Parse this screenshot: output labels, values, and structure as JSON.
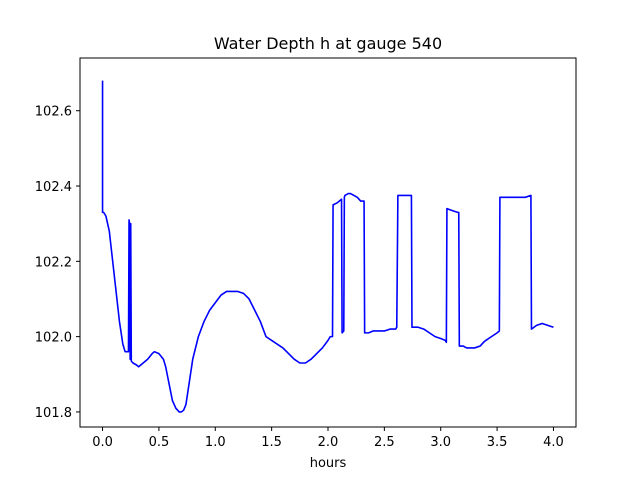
{
  "chart_data": {
    "type": "line",
    "title": "Water Depth h at gauge 540",
    "xlabel": "hours",
    "ylabel": "",
    "xlim": [
      -0.2,
      4.2
    ],
    "ylim": [
      101.76,
      102.74
    ],
    "xticks": [
      0.0,
      0.5,
      1.0,
      1.5,
      2.0,
      2.5,
      3.0,
      3.5,
      4.0
    ],
    "xtick_labels": [
      "0.0",
      "0.5",
      "1.0",
      "1.5",
      "2.0",
      "2.5",
      "3.0",
      "3.5",
      "4.0"
    ],
    "yticks": [
      101.8,
      102.0,
      102.2,
      102.4,
      102.6
    ],
    "ytick_labels": [
      "101.8",
      "102.0",
      "102.2",
      "102.4",
      "102.6"
    ],
    "grid": false,
    "series": [
      {
        "color": "#0000ff",
        "x": [
          0.0,
          0.0,
          0.01,
          0.03,
          0.06,
          0.09,
          0.12,
          0.15,
          0.18,
          0.2,
          0.23,
          0.235,
          0.24,
          0.245,
          0.25,
          0.255,
          0.27,
          0.3,
          0.32,
          0.36,
          0.4,
          0.44,
          0.46,
          0.5,
          0.54,
          0.56,
          0.6,
          0.62,
          0.65,
          0.68,
          0.7,
          0.72,
          0.74,
          0.76,
          0.8,
          0.85,
          0.9,
          0.95,
          1.0,
          1.05,
          1.1,
          1.15,
          1.2,
          1.25,
          1.3,
          1.35,
          1.4,
          1.45,
          1.5,
          1.55,
          1.6,
          1.65,
          1.7,
          1.75,
          1.8,
          1.85,
          1.9,
          1.95,
          2.0,
          2.02,
          2.04,
          2.045,
          2.08,
          2.1,
          2.12,
          2.125,
          2.14,
          2.145,
          2.15,
          2.18,
          2.2,
          2.23,
          2.26,
          2.29,
          2.32,
          2.325,
          2.33,
          2.36,
          2.4,
          2.45,
          2.5,
          2.55,
          2.6,
          2.61,
          2.62,
          2.64,
          2.66,
          2.7,
          2.72,
          2.74,
          2.745,
          2.76,
          2.8,
          2.85,
          2.9,
          2.95,
          3.0,
          3.04,
          3.05,
          3.055,
          3.1,
          3.15,
          3.16,
          3.165,
          3.2,
          3.23,
          3.26,
          3.3,
          3.35,
          3.38,
          3.4,
          3.45,
          3.5,
          3.52,
          3.525,
          3.55,
          3.6,
          3.65,
          3.7,
          3.75,
          3.8,
          3.805,
          3.85,
          3.9,
          3.95,
          4.0
        ],
        "y": [
          102.68,
          102.33,
          102.33,
          102.32,
          102.28,
          102.2,
          102.12,
          102.04,
          101.98,
          101.96,
          101.96,
          102.31,
          102.3,
          101.94,
          102.3,
          101.935,
          101.93,
          101.925,
          101.92,
          101.93,
          101.94,
          101.955,
          101.96,
          101.955,
          101.94,
          101.92,
          101.86,
          101.83,
          101.81,
          101.8,
          101.8,
          101.805,
          101.82,
          101.86,
          101.94,
          102.0,
          102.04,
          102.07,
          102.09,
          102.11,
          102.12,
          102.12,
          102.12,
          102.115,
          102.1,
          102.07,
          102.04,
          102.0,
          101.99,
          101.98,
          101.97,
          101.955,
          101.94,
          101.93,
          101.93,
          101.94,
          101.955,
          101.97,
          101.99,
          102.0,
          102.0,
          102.35,
          102.355,
          102.36,
          102.365,
          102.01,
          102.015,
          102.37,
          102.375,
          102.38,
          102.38,
          102.375,
          102.37,
          102.36,
          102.36,
          102.01,
          102.01,
          102.01,
          102.015,
          102.015,
          102.015,
          102.02,
          102.02,
          102.025,
          102.375,
          102.375,
          102.375,
          102.375,
          102.375,
          102.375,
          102.025,
          102.025,
          102.025,
          102.02,
          102.01,
          102.0,
          101.995,
          101.99,
          101.985,
          102.34,
          102.335,
          102.33,
          102.33,
          101.975,
          101.975,
          101.97,
          101.97,
          101.97,
          101.975,
          101.985,
          101.99,
          102.0,
          102.01,
          102.015,
          102.37,
          102.37,
          102.37,
          102.37,
          102.37,
          102.37,
          102.375,
          102.02,
          102.03,
          102.035,
          102.03,
          102.025
        ]
      }
    ]
  }
}
